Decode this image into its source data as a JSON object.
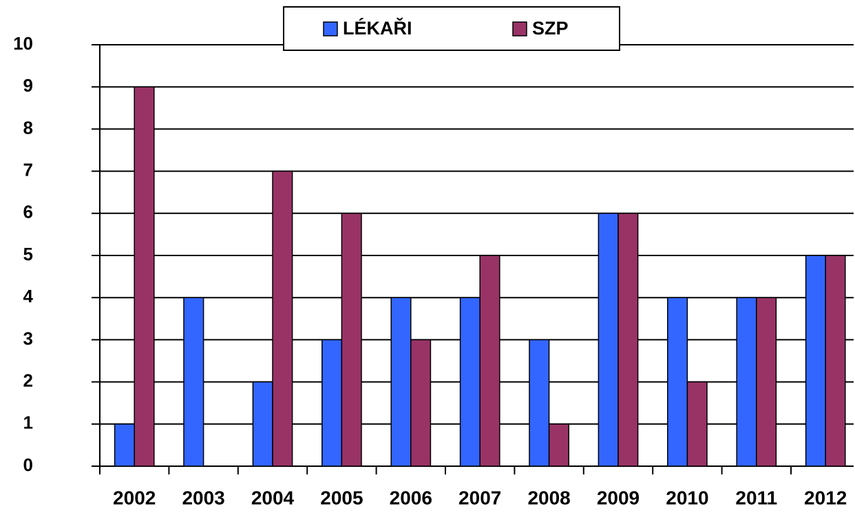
{
  "chart_data": {
    "type": "bar",
    "categories": [
      "2002",
      "2003",
      "2004",
      "2005",
      "2006",
      "2007",
      "2008",
      "2009",
      "2010",
      "2011",
      "2012"
    ],
    "series": [
      {
        "name": "LÉKAŘI",
        "color": "#3366ff",
        "values": [
          1,
          4,
          2,
          3,
          4,
          4,
          3,
          6,
          4,
          4,
          5
        ]
      },
      {
        "name": "SZP",
        "color": "#993366",
        "values": [
          9,
          0,
          7,
          6,
          3,
          5,
          1,
          6,
          2,
          4,
          5
        ]
      }
    ],
    "ylim": [
      0,
      10
    ],
    "yticks": [
      0,
      1,
      2,
      3,
      4,
      5,
      6,
      7,
      8,
      9,
      10
    ],
    "grid": true,
    "legend": "top"
  }
}
